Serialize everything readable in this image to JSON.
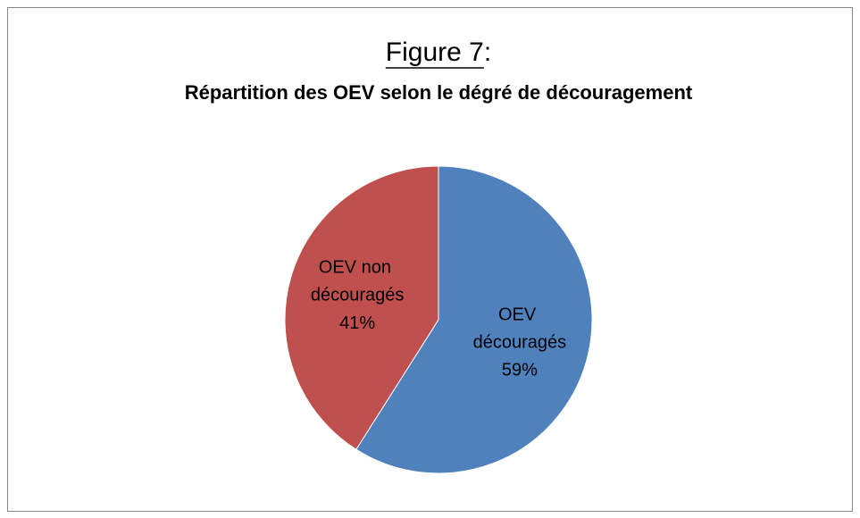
{
  "chart_data": {
    "type": "pie",
    "title": "Figure 7:",
    "subtitle": "Répartition des OEV selon le dégré de découragement",
    "categories": [
      "OEV découragés",
      "OEV non découragés"
    ],
    "values": [
      59,
      41
    ],
    "value_labels": [
      "59%",
      "41%"
    ],
    "colors": [
      "#4f81bd",
      "#c0504d"
    ]
  }
}
